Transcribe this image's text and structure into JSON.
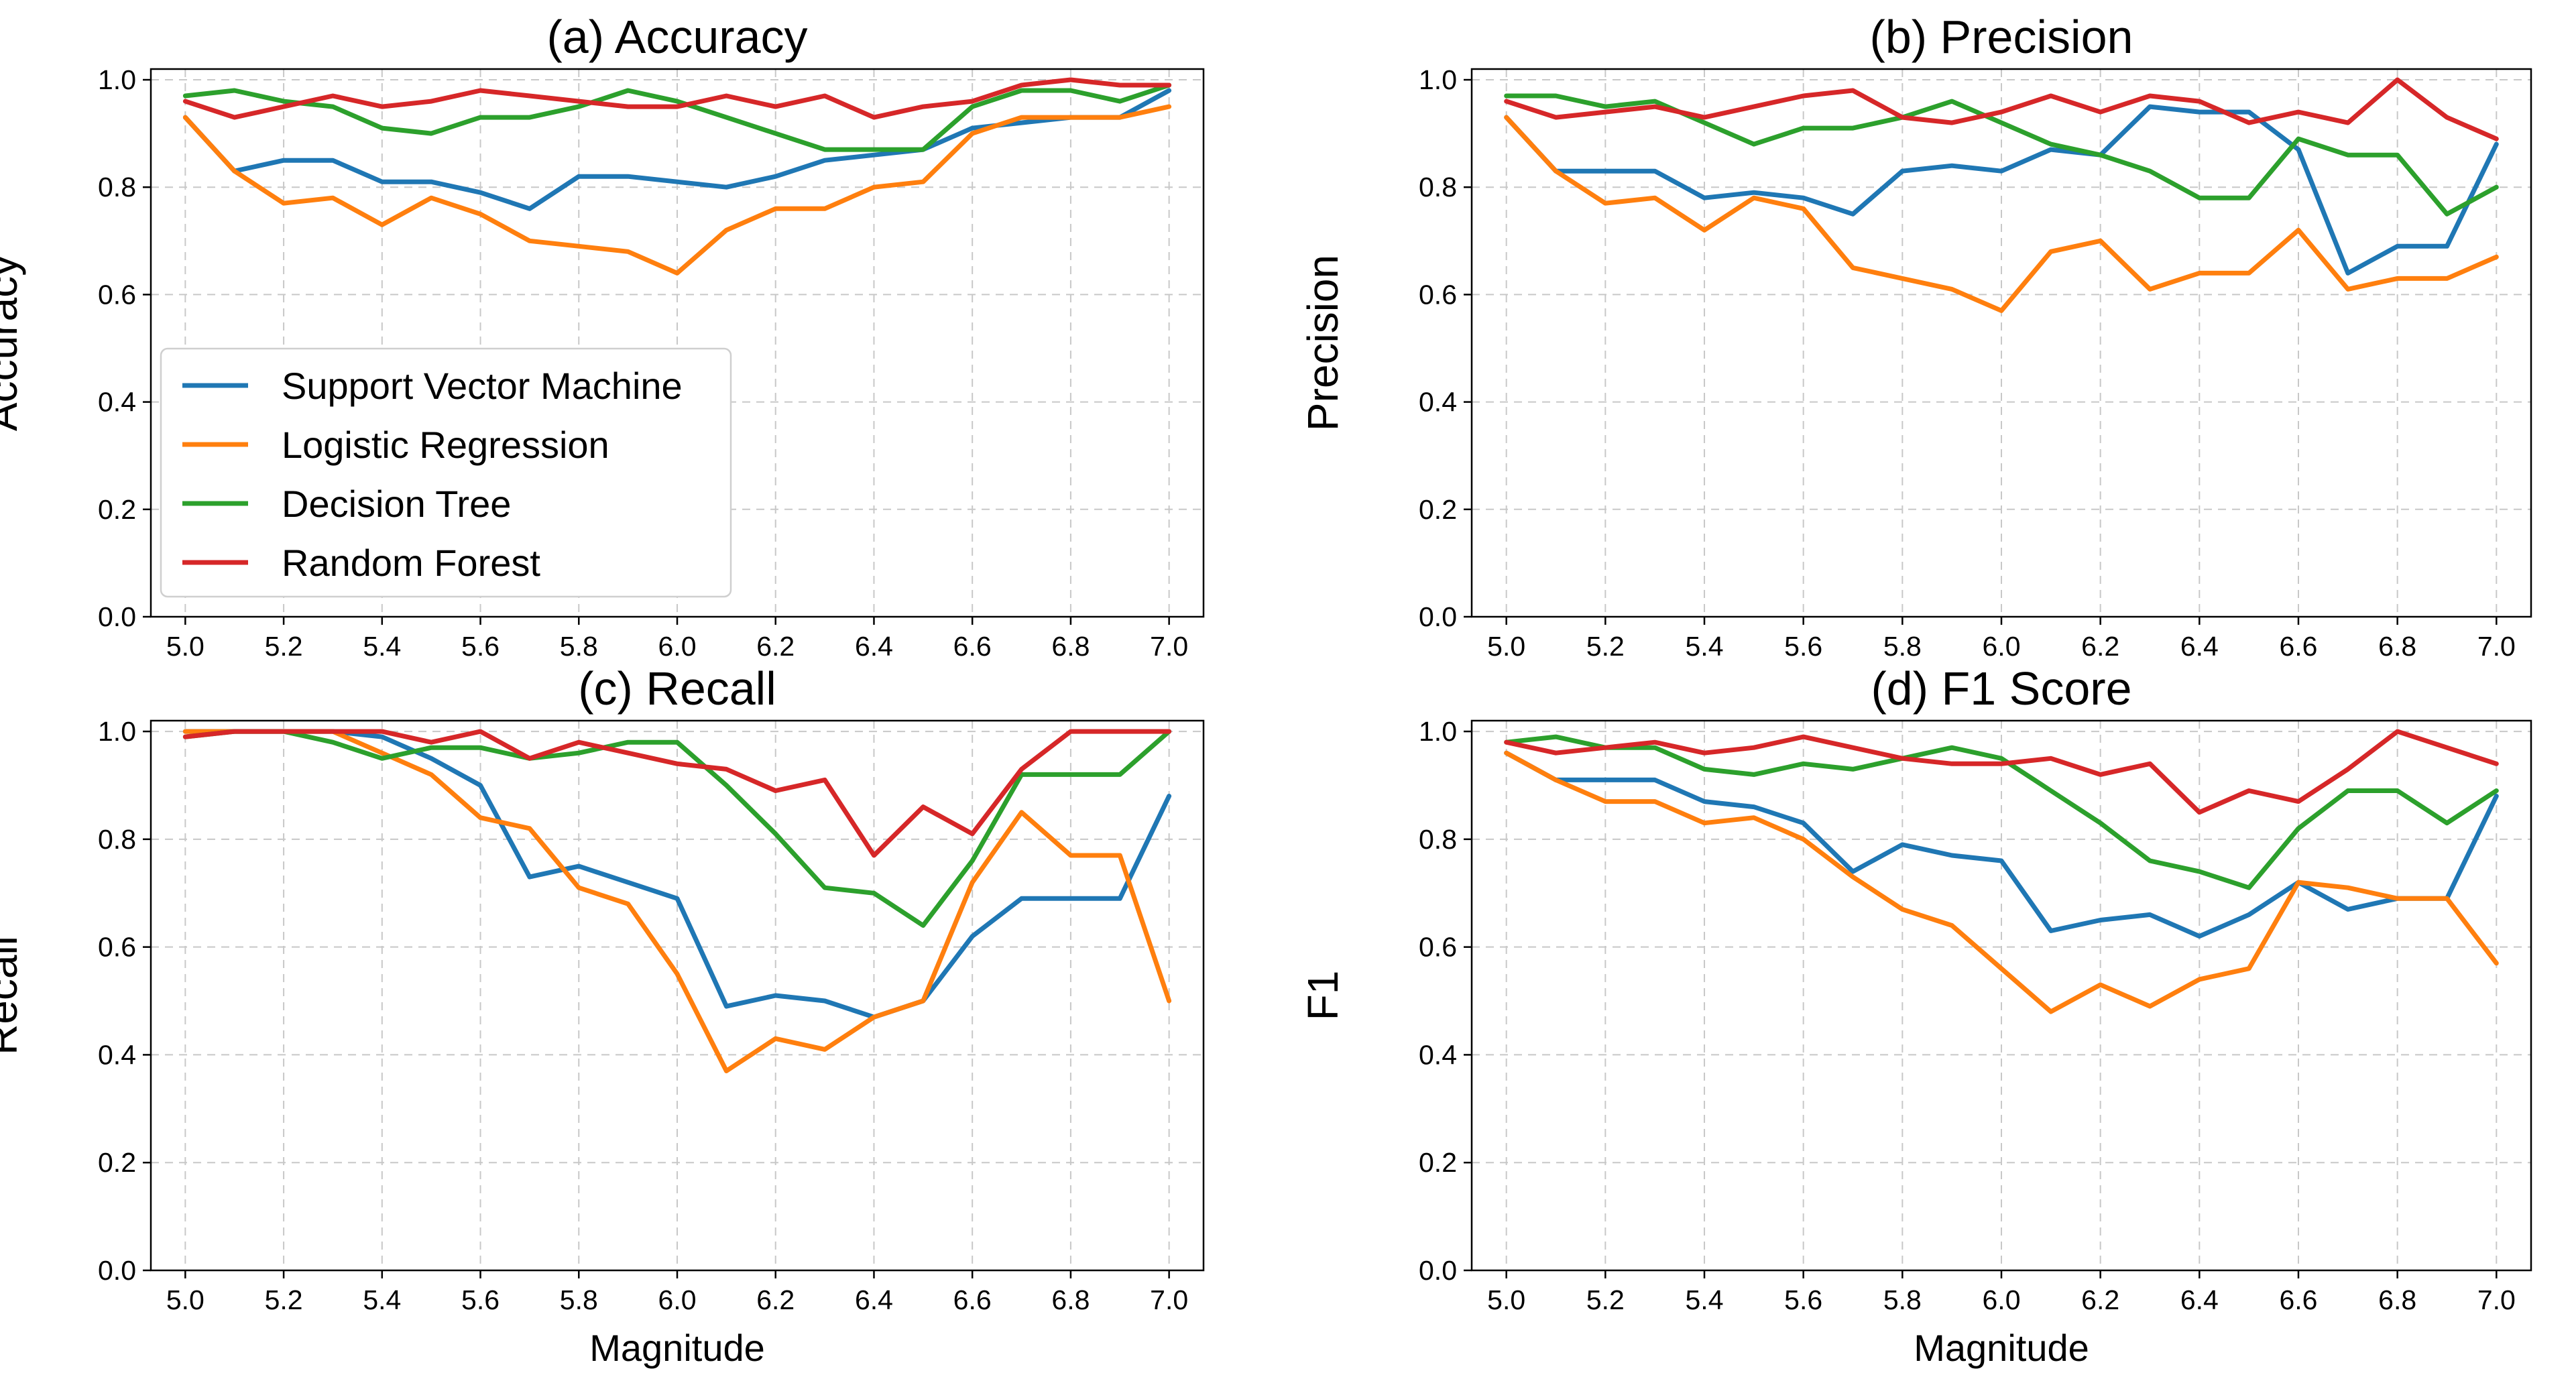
{
  "chart_data": [
    {
      "type": "line",
      "title": "(a)  Accuracy",
      "xlabel": "",
      "ylabel": "Accuracy",
      "x": [
        5.0,
        5.1,
        5.2,
        5.3,
        5.4,
        5.5,
        5.6,
        5.7,
        5.8,
        5.9,
        6.0,
        6.1,
        6.2,
        6.3,
        6.4,
        6.5,
        6.6,
        6.7,
        6.8,
        6.9,
        7.0
      ],
      "xticks": [
        "5.0",
        "5.2",
        "5.4",
        "5.6",
        "5.8",
        "6.0",
        "6.2",
        "6.4",
        "6.6",
        "6.8",
        "7.0"
      ],
      "yticks": [
        "0.0",
        "0.2",
        "0.4",
        "0.6",
        "0.8",
        "1.0"
      ],
      "xlim": [
        4.93,
        7.07
      ],
      "ylim": [
        0.0,
        1.02
      ],
      "grid": true,
      "legend": "left",
      "series": [
        {
          "name": "Support Vector Machine",
          "color": "#1f77b4",
          "values": [
            0.93,
            0.83,
            0.85,
            0.85,
            0.81,
            0.81,
            0.79,
            0.76,
            0.82,
            0.82,
            0.81,
            0.8,
            0.82,
            0.85,
            0.86,
            0.87,
            0.91,
            0.92,
            0.93,
            0.93,
            0.98
          ]
        },
        {
          "name": "Logistic Regression",
          "color": "#ff7f0e",
          "values": [
            0.93,
            0.83,
            0.77,
            0.78,
            0.73,
            0.78,
            0.75,
            0.7,
            0.69,
            0.68,
            0.64,
            0.72,
            0.76,
            0.76,
            0.8,
            0.81,
            0.9,
            0.93,
            0.93,
            0.93,
            0.95
          ]
        },
        {
          "name": "Decision Tree",
          "color": "#2ca02c",
          "values": [
            0.97,
            0.98,
            0.96,
            0.95,
            0.91,
            0.9,
            0.93,
            0.93,
            0.95,
            0.98,
            0.96,
            0.93,
            0.9,
            0.87,
            0.87,
            0.87,
            0.95,
            0.98,
            0.98,
            0.96,
            0.99
          ]
        },
        {
          "name": "Random Forest",
          "color": "#d62728",
          "values": [
            0.96,
            0.93,
            0.95,
            0.97,
            0.95,
            0.96,
            0.98,
            0.97,
            0.96,
            0.95,
            0.95,
            0.97,
            0.95,
            0.97,
            0.93,
            0.95,
            0.96,
            0.99,
            1.0,
            0.99,
            0.99
          ]
        }
      ]
    },
    {
      "type": "line",
      "title": "(b)  Precision",
      "xlabel": "",
      "ylabel": "Precision",
      "x": [
        5.0,
        5.1,
        5.2,
        5.3,
        5.4,
        5.5,
        5.6,
        5.7,
        5.8,
        5.9,
        6.0,
        6.1,
        6.2,
        6.3,
        6.4,
        6.5,
        6.6,
        6.7,
        6.8,
        6.9,
        7.0
      ],
      "xticks": [
        "5.0",
        "5.2",
        "5.4",
        "5.6",
        "5.8",
        "6.0",
        "6.2",
        "6.4",
        "6.6",
        "6.8",
        "7.0"
      ],
      "yticks": [
        "0.0",
        "0.2",
        "0.4",
        "0.6",
        "0.8",
        "1.0"
      ],
      "xlim": [
        4.93,
        7.07
      ],
      "ylim": [
        0.0,
        1.02
      ],
      "grid": true,
      "series": [
        {
          "name": "Support Vector Machine",
          "color": "#1f77b4",
          "values": [
            0.93,
            0.83,
            0.83,
            0.83,
            0.78,
            0.79,
            0.78,
            0.75,
            0.83,
            0.84,
            0.83,
            0.87,
            0.86,
            0.95,
            0.94,
            0.94,
            0.87,
            0.64,
            0.69,
            0.69,
            0.88
          ]
        },
        {
          "name": "Logistic Regression",
          "color": "#ff7f0e",
          "values": [
            0.93,
            0.83,
            0.77,
            0.78,
            0.72,
            0.78,
            0.76,
            0.65,
            0.63,
            0.61,
            0.57,
            0.68,
            0.7,
            0.61,
            0.64,
            0.64,
            0.72,
            0.61,
            0.63,
            0.63,
            0.67
          ]
        },
        {
          "name": "Decision Tree",
          "color": "#2ca02c",
          "values": [
            0.97,
            0.97,
            0.95,
            0.96,
            0.92,
            0.88,
            0.91,
            0.91,
            0.93,
            0.96,
            0.92,
            0.88,
            0.86,
            0.83,
            0.78,
            0.78,
            0.89,
            0.86,
            0.86,
            0.75,
            0.8
          ]
        },
        {
          "name": "Random Forest",
          "color": "#d62728",
          "values": [
            0.96,
            0.93,
            0.94,
            0.95,
            0.93,
            0.95,
            0.97,
            0.98,
            0.93,
            0.92,
            0.94,
            0.97,
            0.94,
            0.97,
            0.96,
            0.92,
            0.94,
            0.92,
            1.0,
            0.93,
            0.89
          ]
        }
      ]
    },
    {
      "type": "line",
      "title": "(c)  Recall",
      "xlabel": "Magnitude",
      "ylabel": "Recall",
      "x": [
        5.0,
        5.1,
        5.2,
        5.3,
        5.4,
        5.5,
        5.6,
        5.7,
        5.8,
        5.9,
        6.0,
        6.1,
        6.2,
        6.3,
        6.4,
        6.5,
        6.6,
        6.7,
        6.8,
        6.9,
        7.0
      ],
      "xticks": [
        "5.0",
        "5.2",
        "5.4",
        "5.6",
        "5.8",
        "6.0",
        "6.2",
        "6.4",
        "6.6",
        "6.8",
        "7.0"
      ],
      "yticks": [
        "0.0",
        "0.2",
        "0.4",
        "0.6",
        "0.8",
        "1.0"
      ],
      "xlim": [
        4.93,
        7.07
      ],
      "ylim": [
        0.0,
        1.02
      ],
      "grid": true,
      "series": [
        {
          "name": "Support Vector Machine",
          "color": "#1f77b4",
          "values": [
            1.0,
            1.0,
            1.0,
            1.0,
            0.99,
            0.95,
            0.9,
            0.73,
            0.75,
            0.72,
            0.69,
            0.49,
            0.51,
            0.5,
            0.47,
            0.5,
            0.62,
            0.69,
            0.69,
            0.69,
            0.88
          ]
        },
        {
          "name": "Logistic Regression",
          "color": "#ff7f0e",
          "values": [
            1.0,
            1.0,
            1.0,
            1.0,
            0.96,
            0.92,
            0.84,
            0.82,
            0.71,
            0.68,
            0.55,
            0.37,
            0.43,
            0.41,
            0.47,
            0.5,
            0.72,
            0.85,
            0.77,
            0.77,
            0.5
          ]
        },
        {
          "name": "Decision Tree",
          "color": "#2ca02c",
          "values": [
            0.99,
            1.0,
            1.0,
            0.98,
            0.95,
            0.97,
            0.97,
            0.95,
            0.96,
            0.98,
            0.98,
            0.9,
            0.81,
            0.71,
            0.7,
            0.64,
            0.76,
            0.92,
            0.92,
            0.92,
            1.0
          ]
        },
        {
          "name": "Random Forest",
          "color": "#d62728",
          "values": [
            0.99,
            1.0,
            1.0,
            1.0,
            1.0,
            0.98,
            1.0,
            0.95,
            0.98,
            0.96,
            0.94,
            0.93,
            0.89,
            0.91,
            0.77,
            0.86,
            0.81,
            0.93,
            1.0,
            1.0,
            1.0
          ]
        }
      ]
    },
    {
      "type": "line",
      "title": "(d)  F1 Score",
      "xlabel": "Magnitude",
      "ylabel": "F1",
      "x": [
        5.0,
        5.1,
        5.2,
        5.3,
        5.4,
        5.5,
        5.6,
        5.7,
        5.8,
        5.9,
        6.0,
        6.1,
        6.2,
        6.3,
        6.4,
        6.5,
        6.6,
        6.7,
        6.8,
        6.9,
        7.0
      ],
      "xticks": [
        "5.0",
        "5.2",
        "5.4",
        "5.6",
        "5.8",
        "6.0",
        "6.2",
        "6.4",
        "6.6",
        "6.8",
        "7.0"
      ],
      "yticks": [
        "0.0",
        "0.2",
        "0.4",
        "0.6",
        "0.8",
        "1.0"
      ],
      "xlim": [
        4.93,
        7.07
      ],
      "ylim": [
        0.0,
        1.02
      ],
      "grid": true,
      "series": [
        {
          "name": "Support Vector Machine",
          "color": "#1f77b4",
          "values": [
            0.96,
            0.91,
            0.91,
            0.91,
            0.87,
            0.86,
            0.83,
            0.74,
            0.79,
            0.77,
            0.76,
            0.63,
            0.65,
            0.66,
            0.62,
            0.66,
            0.72,
            0.67,
            0.69,
            0.69,
            0.88
          ]
        },
        {
          "name": "Logistic Regression",
          "color": "#ff7f0e",
          "values": [
            0.96,
            0.91,
            0.87,
            0.87,
            0.83,
            0.84,
            0.8,
            0.73,
            0.67,
            0.64,
            0.56,
            0.48,
            0.53,
            0.49,
            0.54,
            0.56,
            0.72,
            0.71,
            0.69,
            0.69,
            0.57
          ]
        },
        {
          "name": "Decision Tree",
          "color": "#2ca02c",
          "values": [
            0.98,
            0.99,
            0.97,
            0.97,
            0.93,
            0.92,
            0.94,
            0.93,
            0.95,
            0.97,
            0.95,
            0.89,
            0.83,
            0.76,
            0.74,
            0.71,
            0.82,
            0.89,
            0.89,
            0.83,
            0.89
          ]
        },
        {
          "name": "Random Forest",
          "color": "#d62728",
          "values": [
            0.98,
            0.96,
            0.97,
            0.98,
            0.96,
            0.97,
            0.99,
            0.97,
            0.95,
            0.94,
            0.94,
            0.95,
            0.92,
            0.94,
            0.85,
            0.89,
            0.87,
            0.93,
            1.0,
            0.97,
            0.94
          ]
        }
      ]
    }
  ]
}
